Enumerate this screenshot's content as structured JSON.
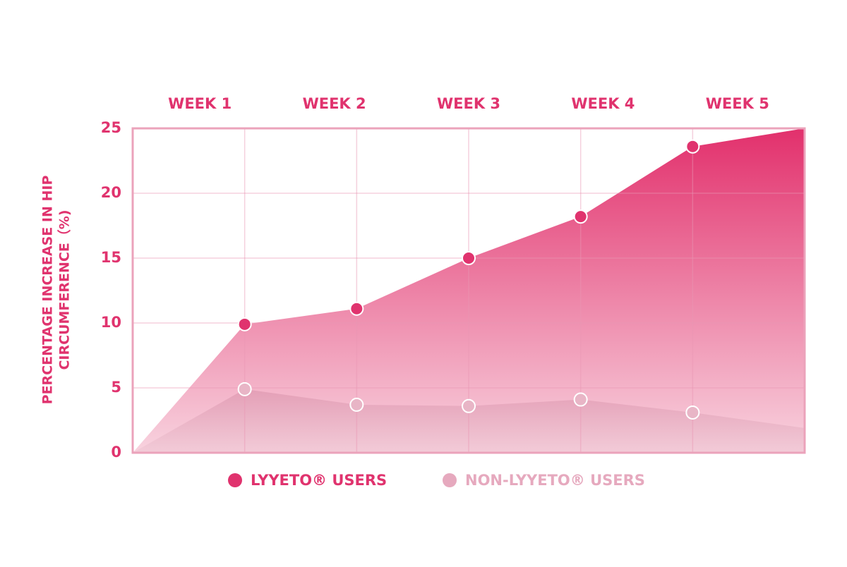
{
  "chart_data": {
    "type": "area",
    "y_label": [
      "PERCENTAGE INCREASE IN HIP",
      "CIRCUMFERENCE（%)"
    ],
    "categories": [
      null,
      "WEEK 1",
      "WEEK 2",
      "WEEK 3",
      "WEEK 4",
      "WEEK 5",
      null
    ],
    "series": [
      {
        "name": "LYYETO® USERS",
        "color": "#e0336e",
        "values": [
          0,
          9.9,
          11.1,
          15,
          18.2,
          23.6,
          25
        ]
      },
      {
        "name": "NON-LYYETO® USERS",
        "color": "#e6a9be",
        "values": [
          0,
          4.9,
          3.7,
          3.6,
          4.1,
          3.1,
          1.9
        ]
      }
    ],
    "ylim": [
      0,
      25
    ],
    "yticks": [
      0,
      5,
      10,
      15,
      20,
      25
    ],
    "grid": true
  }
}
